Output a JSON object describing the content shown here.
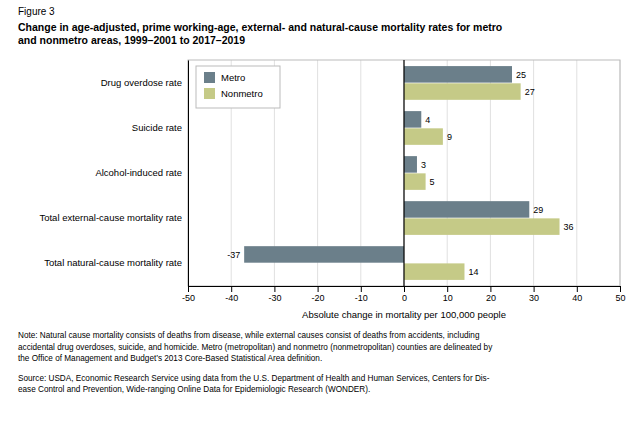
{
  "chart_data": {
    "type": "bar",
    "orientation": "horizontal",
    "subtitle": "Figure 3",
    "title": "Change in age-adjusted, prime working-age, external- and natural-cause mortality rates for metro\nand nonmetro areas, 1999–2001 to 2017–2019",
    "categories": [
      "Drug overdose rate",
      "Suicide rate",
      "Alcohol-induced rate",
      "Total external-cause mortality rate",
      "Total natural-cause mortality rate"
    ],
    "series": [
      {
        "name": "Metro",
        "color": "#6b7f8a",
        "values": [
          25,
          4,
          3,
          29,
          -37
        ]
      },
      {
        "name": "Nonmetro",
        "color": "#c5ca87",
        "values": [
          27,
          9,
          5,
          36,
          14
        ]
      }
    ],
    "xlabel": "Absolute change in mortality per 100,000 people",
    "xlim": [
      -50,
      50
    ],
    "xticks": [
      -50,
      -40,
      -30,
      -20,
      -10,
      0,
      10,
      20,
      30,
      40,
      50
    ],
    "grid": true,
    "legend": "upper left",
    "data_labels": true,
    "annotations": [
      "Note: Natural cause mortality consists of deaths from disease, while external causes consist of deaths from accidents, including\naccidental drug overdoses, suicide, and homicide. Metro (metropolitan) and nonmetro (nonmetropolitan) counties are delineated by\nthe Office of Management and Budget’s 2013 Core-Based Statistical Area definition.",
      "Source: USDA, Economic Research Service using data from the U.S. Department of Health and Human Services, Centers for Dis-\nease Control and Prevention, Wide-ranging Online Data for Epidemiologic Research (WONDER)."
    ]
  }
}
